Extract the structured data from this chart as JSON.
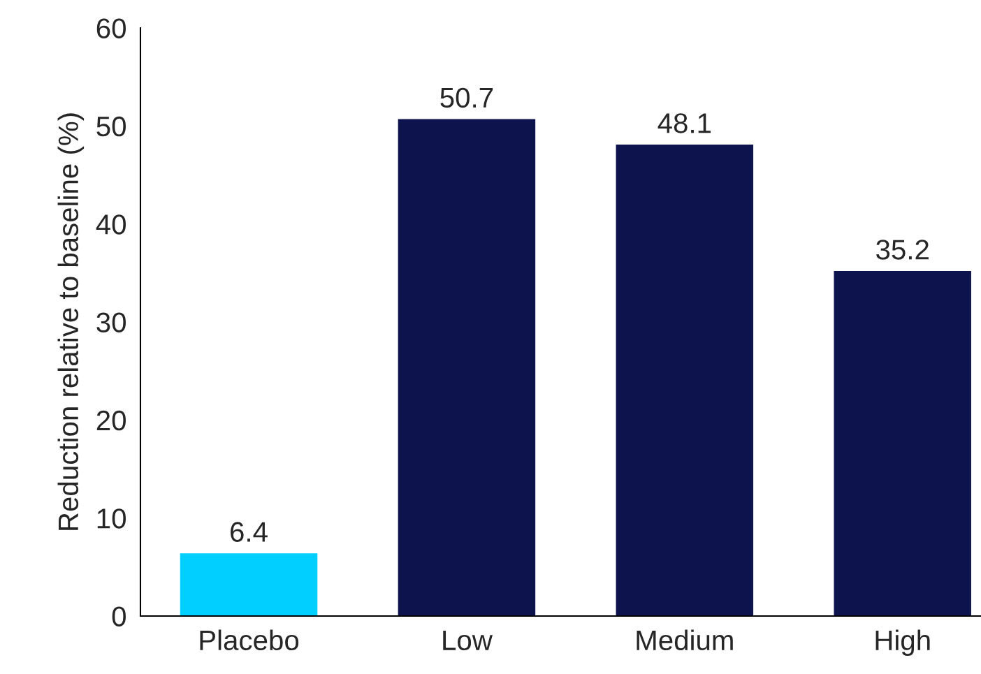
{
  "chart_data": {
    "type": "bar",
    "ylabel": "Reduction relative to baseline (%)",
    "categories": [
      "Placebo",
      "Low",
      "Medium",
      "High"
    ],
    "values": [
      6.4,
      50.7,
      48.1,
      35.2
    ],
    "colors": [
      "#00cfff",
      "#0d144d",
      "#0d144d",
      "#0d144d"
    ],
    "ylim": [
      0,
      60
    ],
    "yticks": [
      0,
      10,
      20,
      30,
      40,
      50,
      60
    ],
    "data_labels": true,
    "grid": false
  }
}
